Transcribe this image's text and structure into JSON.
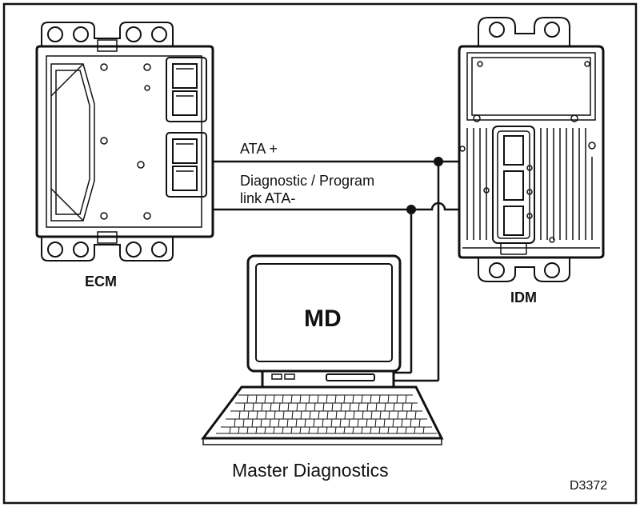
{
  "labels": {
    "ecm": "ECM",
    "idm": "IDM",
    "md": "MD",
    "caption": "Master Diagnostics",
    "ata_plus": "ATA +",
    "diag_line1": "Diagnostic / Program",
    "diag_line2": "link ATA-",
    "figure_id": "D3372"
  }
}
